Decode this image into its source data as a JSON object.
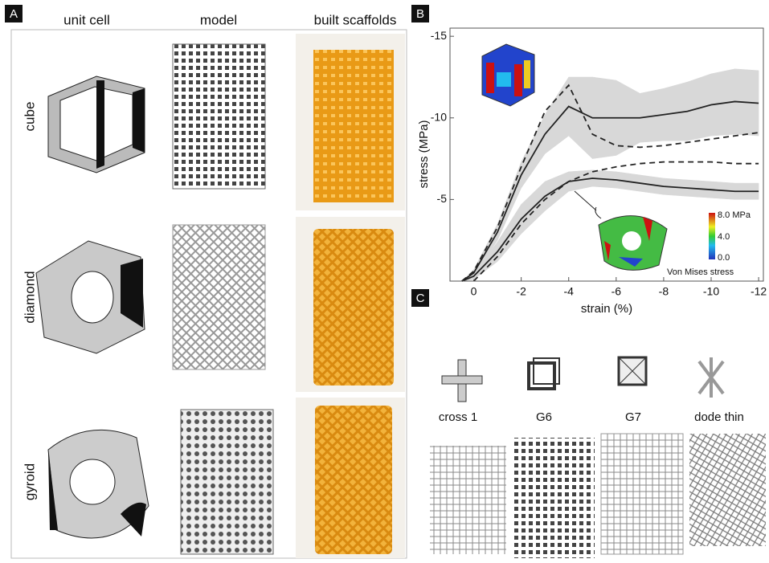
{
  "panels": {
    "a": {
      "label": "A",
      "columns": [
        "unit cell",
        "model",
        "built scaffolds"
      ],
      "rows": [
        "cube",
        "diamond",
        "gyroid"
      ]
    },
    "b": {
      "label": "B"
    },
    "c": {
      "label": "C",
      "structures": [
        "cross 1",
        "G6",
        "G7",
        "dode thin"
      ]
    }
  },
  "chart_data": {
    "type": "line",
    "x_label": "strain (%)",
    "y_label": "stress (MPa)",
    "x": [
      0.5,
      0,
      -1,
      -2,
      -3,
      -4,
      -5,
      -6,
      -7,
      -8,
      -9,
      -10,
      -11,
      -12
    ],
    "xlim": [
      1,
      -12.2
    ],
    "xticks": [
      0,
      -2,
      -4,
      -6,
      -8,
      -10,
      -12
    ],
    "ylim": [
      0,
      -15.5
    ],
    "yticks": [
      -15,
      -10,
      -5
    ],
    "series": [
      {
        "color": "#222222",
        "dash": false,
        "band_color": "#d8d8d8",
        "values": [
          0,
          -0.5,
          -3,
          -6.5,
          -9,
          -10.7,
          -10,
          -10,
          -10,
          -10.2,
          -10.4,
          -10.8,
          -11,
          -10.9
        ],
        "spread": [
          0,
          0.2,
          0.5,
          0.8,
          1.2,
          1.8,
          2.5,
          2.3,
          1.5,
          1.6,
          1.8,
          1.9,
          2,
          2
        ]
      },
      {
        "color": "#222222",
        "dash": true,
        "values": [
          0,
          -0.6,
          -3.3,
          -7,
          -10.4,
          -12,
          -9,
          -8.3,
          -8.2,
          -8.3,
          -8.5,
          -8.7,
          -8.9,
          -9.1
        ]
      },
      {
        "color": "#222222",
        "dash": false,
        "band_color": "#d8d8d8",
        "values": [
          0,
          -0.3,
          -1.8,
          -3.8,
          -5.2,
          -6.1,
          -6.3,
          -6.2,
          -6,
          -5.8,
          -5.7,
          -5.6,
          -5.5,
          -5.5
        ],
        "spread": [
          0,
          0.2,
          0.6,
          0.9,
          0.9,
          0.6,
          0.5,
          0.5,
          0.5,
          0.5,
          0.5,
          0.5,
          0.5,
          0.5
        ]
      },
      {
        "color": "#222222",
        "dash": true,
        "values": [
          null,
          0,
          -1.5,
          -3.5,
          -5,
          -6.1,
          -6.7,
          -7,
          -7.2,
          -7.3,
          -7.3,
          -7.3,
          -7.2,
          -7.2
        ]
      }
    ],
    "annotations": [
      "8.0 MPa",
      "4.0",
      "0.0",
      "Von Mises stress"
    ]
  }
}
